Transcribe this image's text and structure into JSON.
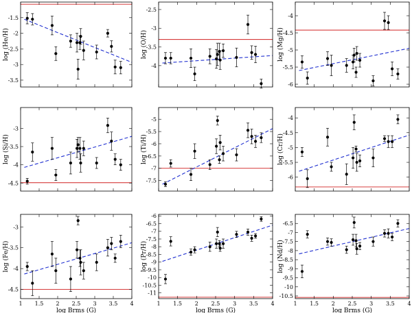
{
  "chart_data": [
    {
      "type": "scatter",
      "id": "he",
      "ylabel": "log (He/H)",
      "xlabel": "",
      "xlim": [
        1,
        4
      ],
      "ylim": [
        -3.72,
        -1.0
      ],
      "yticks": [
        -3.5,
        -3,
        -2.5,
        -2,
        -1.5
      ],
      "yticklabels": [
        "-3.5",
        "-3",
        "-2.5",
        "-2",
        "-1.5"
      ],
      "xticks": [
        1,
        1.5,
        2,
        2.5,
        3,
        3.5,
        4
      ],
      "xticklabels": [],
      "solar": -1.07,
      "fit": [
        [
          1.1,
          -1.55
        ],
        [
          4,
          -2.93
        ]
      ],
      "points": [
        [
          1.18,
          -1.52,
          0.18
        ],
        [
          1.32,
          -1.55,
          0.18
        ],
        [
          1.85,
          -1.75,
          0.3
        ],
        [
          1.95,
          -2.65,
          0.22
        ],
        [
          2.35,
          -2.25,
          0.2
        ],
        [
          2.52,
          -2.3,
          0.3
        ],
        [
          2.55,
          -3.15,
          0.32
        ],
        [
          2.6,
          -2.3,
          0.22
        ],
        [
          2.62,
          -2.1,
          0.25
        ],
        [
          2.7,
          -2.55,
          0.3
        ],
        [
          3.05,
          -2.6,
          0.22
        ],
        [
          3.35,
          -2.0,
          0.12
        ],
        [
          3.45,
          -2.42,
          0.18
        ],
        [
          3.55,
          -3.08,
          0.22
        ],
        [
          3.7,
          -3.1,
          0.2
        ]
      ]
    },
    {
      "type": "scatter",
      "id": "o",
      "ylabel": "log (O/H)",
      "xlabel": "",
      "xlim": [
        1,
        4
      ],
      "ylim": [
        -4.57,
        -2.3
      ],
      "yticks": [
        -4,
        -3.5,
        -3,
        -2.5
      ],
      "yticklabels": [
        "-4",
        "-3.5",
        "-3",
        "-2.5"
      ],
      "xticks": [
        1,
        1.5,
        2,
        2.5,
        3,
        3.5,
        4
      ],
      "xticklabels": [],
      "solar": -3.3,
      "fit": [
        [
          1.1,
          -3.93
        ],
        [
          4,
          -3.73
        ]
      ],
      "points": [
        [
          1.18,
          -3.8,
          0.15
        ],
        [
          1.32,
          -3.8,
          0.15
        ],
        [
          1.85,
          -3.8,
          0.25
        ],
        [
          1.95,
          -4.22,
          0.18
        ],
        [
          2.35,
          -3.75,
          0.2
        ],
        [
          2.52,
          -3.82,
          0.25
        ],
        [
          2.55,
          -3.7,
          0.3
        ],
        [
          2.6,
          -3.62,
          0.22
        ],
        [
          2.62,
          -3.85,
          0.25
        ],
        [
          2.7,
          -3.6,
          0.18
        ],
        [
          3.05,
          -3.78,
          0.25
        ],
        [
          3.35,
          -2.9,
          0.25
        ],
        [
          3.45,
          -3.65,
          0.18
        ],
        [
          3.55,
          -3.7,
          0.22
        ],
        [
          3.7,
          -4.48,
          0.12
        ]
      ]
    },
    {
      "type": "scatter",
      "id": "mg",
      "ylabel": "log (Mg/H)",
      "xlabel": "",
      "xlim": [
        1,
        4
      ],
      "ylim": [
        -6.08,
        -3.6
      ],
      "yticks": [
        -6,
        -5.5,
        -5,
        -4.5,
        -4
      ],
      "yticklabels": [
        "-6",
        "-5.5",
        "-5",
        "-4.5",
        "-4"
      ],
      "xticks": [
        1,
        1.5,
        2,
        2.5,
        3,
        3.5,
        4
      ],
      "xticklabels": [],
      "solar": -4.42,
      "fit": [
        [
          1.1,
          -5.6
        ],
        [
          4,
          -4.95
        ]
      ],
      "points": [
        [
          1.18,
          -5.35,
          0.18
        ],
        [
          1.32,
          -5.82,
          0.18
        ],
        [
          1.85,
          -5.25,
          0.2
        ],
        [
          1.95,
          -5.45,
          0.3
        ],
        [
          2.35,
          -5.45,
          0.2
        ],
        [
          2.52,
          -5.35,
          0.2
        ],
        [
          2.55,
          -5.15,
          0.2
        ],
        [
          2.6,
          -5.65,
          0.15
        ],
        [
          2.62,
          -5.1,
          0.2
        ],
        [
          2.7,
          -5.3,
          0.2
        ],
        [
          3.05,
          -5.9,
          0.15
        ],
        [
          3.35,
          -4.15,
          0.25
        ],
        [
          3.45,
          -4.2,
          0.2
        ],
        [
          3.55,
          -5.55,
          0.2
        ],
        [
          3.7,
          -5.7,
          0.15
        ]
      ]
    },
    {
      "type": "scatter",
      "id": "si",
      "ylabel": "log (Si/H)",
      "xlabel": "",
      "xlim": [
        1,
        4
      ],
      "ylim": [
        -4.72,
        -2.43
      ],
      "yticks": [
        -4.5,
        -4,
        -3.5,
        -3
      ],
      "yticklabels": [
        "-4.5",
        "-4",
        "-3.5",
        "-3"
      ],
      "xticks": [
        1,
        1.5,
        2,
        2.5,
        3,
        3.5,
        4
      ],
      "xticklabels": [],
      "solar": -4.49,
      "fit": [
        [
          1.1,
          -4.07
        ],
        [
          4,
          -3.22
        ]
      ],
      "points": [
        [
          1.18,
          -4.45,
          0.08
        ],
        [
          1.32,
          -3.65,
          0.25
        ],
        [
          1.85,
          -3.55,
          0.3
        ],
        [
          1.95,
          -4.28,
          0.15
        ],
        [
          2.35,
          -3.95,
          0.3
        ],
        [
          2.52,
          -3.55,
          0.25
        ],
        [
          2.55,
          -3.45,
          0.2
        ],
        [
          2.6,
          -3.55,
          0.3
        ],
        [
          2.62,
          -3.95,
          0.25
        ],
        [
          2.7,
          -3.55,
          0.2
        ],
        [
          3.05,
          -3.95,
          0.15
        ],
        [
          3.35,
          -2.92,
          0.2
        ],
        [
          3.45,
          -3.35,
          0.25
        ],
        [
          3.55,
          -3.85,
          0.15
        ],
        [
          3.7,
          -4.0,
          0.15
        ]
      ]
    },
    {
      "type": "scatter",
      "id": "ti",
      "ylabel": "log (Ti/H)",
      "xlabel": "",
      "xlim": [
        1,
        4
      ],
      "ylim": [
        -7.93,
        -4.52
      ],
      "yticks": [
        -7.5,
        -7,
        -6.5,
        -6,
        -5.5,
        -5
      ],
      "yticklabels": [
        "-7.5",
        "-7",
        "-6.5",
        "-6",
        "-5.5",
        "-5"
      ],
      "xticks": [
        1,
        1.5,
        2,
        2.5,
        3,
        3.5,
        4
      ],
      "xticklabels": [],
      "solar": -7.0,
      "fit": [
        [
          1.1,
          -7.65
        ],
        [
          4,
          -5.38
        ]
      ],
      "points": [
        [
          1.18,
          -7.65,
          0.1
        ],
        [
          1.32,
          -6.8,
          0.15
        ],
        [
          1.85,
          -7.25,
          0.25
        ],
        [
          1.95,
          -6.3,
          0.3
        ],
        [
          2.35,
          -6.85,
          0.2
        ],
        [
          2.52,
          -6.1,
          0.3
        ],
        [
          2.55,
          -5.05,
          0.18
        ],
        [
          2.6,
          -6.65,
          0.15
        ],
        [
          2.62,
          -5.95,
          0.3
        ],
        [
          2.7,
          -6.4,
          0.3
        ],
        [
          3.05,
          -6.45,
          0.25
        ],
        [
          3.35,
          -5.45,
          0.3
        ],
        [
          3.45,
          -5.7,
          0.3
        ],
        [
          3.55,
          -5.9,
          0.25
        ],
        [
          3.7,
          -5.75,
          0.2
        ]
      ]
    },
    {
      "type": "scatter",
      "id": "cr",
      "ylabel": "log (Cr/H)",
      "xlabel": "",
      "xlim": [
        1,
        4
      ],
      "ylim": [
        -6.47,
        -3.65
      ],
      "yticks": [
        -6,
        -5.5,
        -5,
        -4.5,
        -4
      ],
      "yticklabels": [
        "-6",
        "-5.5",
        "-5",
        "-4.5",
        "-4"
      ],
      "xticks": [
        1,
        1.5,
        2,
        2.5,
        3,
        3.5,
        4
      ],
      "xticklabels": [],
      "solar": -6.33,
      "fit": [
        [
          1.1,
          -5.8
        ],
        [
          4,
          -4.58
        ]
      ],
      "points": [
        [
          1.18,
          -5.15,
          0.15
        ],
        [
          1.32,
          -6.05,
          0.3
        ],
        [
          1.85,
          -4.65,
          0.3
        ],
        [
          1.95,
          -5.65,
          0.15
        ],
        [
          2.35,
          -5.9,
          0.35
        ],
        [
          2.52,
          -5.35,
          0.35
        ],
        [
          2.55,
          -4.15,
          0.25
        ],
        [
          2.6,
          -5.05,
          0.1
        ],
        [
          2.62,
          -5.5,
          0.3
        ],
        [
          2.7,
          -5.45,
          0.2
        ],
        [
          3.05,
          -5.35,
          0.3
        ],
        [
          3.35,
          -4.7,
          0.1
        ],
        [
          3.45,
          -4.8,
          0.2
        ],
        [
          3.55,
          -4.8,
          0.2
        ],
        [
          3.7,
          -4.05,
          0.15
        ]
      ]
    },
    {
      "type": "scatter",
      "id": "fe",
      "ylabel": "log (Fe/H)",
      "xlabel": "log Brms (G)",
      "xlim": [
        1,
        4
      ],
      "ylim": [
        -4.72,
        -2.7
      ],
      "yticks": [
        -4.5,
        -4,
        -3.5,
        -3
      ],
      "yticklabels": [
        "-4.5",
        "-4",
        "-3.5",
        "-3"
      ],
      "xticks": [
        1,
        1.5,
        2,
        2.5,
        3,
        3.5,
        4
      ],
      "xticklabels": [
        "1",
        "1.5",
        "2",
        "2.5",
        "3",
        "3.5",
        "4"
      ],
      "solar": -4.5,
      "fit": [
        [
          1.1,
          -4.13
        ],
        [
          4,
          -3.38
        ]
      ],
      "points": [
        [
          1.18,
          -3.95,
          0.1
        ],
        [
          1.32,
          -4.35,
          0.3
        ],
        [
          1.85,
          -3.65,
          0.3
        ],
        [
          1.95,
          -4.05,
          0.3
        ],
        [
          2.35,
          -4.25,
          0.3
        ],
        [
          2.52,
          -3.55,
          0.2
        ],
        [
          2.55,
          -2.85,
          0.1
        ],
        [
          2.6,
          -3.75,
          0.2
        ],
        [
          2.62,
          -3.85,
          0.3
        ],
        [
          2.7,
          -4.05,
          0.2
        ],
        [
          3.05,
          -3.85,
          0.2
        ],
        [
          3.35,
          -3.5,
          0.2
        ],
        [
          3.45,
          -3.4,
          0.15
        ],
        [
          3.55,
          -3.75,
          0.1
        ],
        [
          3.7,
          -3.35,
          0.15
        ]
      ]
    },
    {
      "type": "scatter",
      "id": "pr",
      "ylabel": "log (Pr/H)",
      "xlabel": "log Brms (G)",
      "xlim": [
        1,
        4
      ],
      "ylim": [
        -11.37,
        -5.9
      ],
      "yticks": [
        -11,
        -10.5,
        -10,
        -9.5,
        -9,
        -8.5,
        -8,
        -7.5,
        -7,
        -6.5,
        -6
      ],
      "yticklabels": [
        "-11",
        "-10.5",
        "-10",
        "-9.5",
        "-9",
        "-8.5",
        "-8",
        "-7.5",
        "-7",
        "-6.5",
        "-6"
      ],
      "xticks": [
        1,
        1.5,
        2,
        2.5,
        3,
        3.5,
        4
      ],
      "xticklabels": [
        "1",
        "1.5",
        "2",
        "2.5",
        "3",
        "3.5",
        "4"
      ],
      "solar": -11.28,
      "fit": [
        [
          1.1,
          -8.95
        ],
        [
          4,
          -6.6
        ]
      ],
      "points": [
        [
          1.18,
          -10.1,
          0.3
        ],
        [
          1.32,
          -7.65,
          0.3
        ],
        [
          1.85,
          -8.35,
          0.2
        ],
        [
          1.95,
          -8.2,
          0.2
        ],
        [
          2.35,
          -8.0,
          0.3
        ],
        [
          2.52,
          -7.8,
          0.3
        ],
        [
          2.55,
          -7.05,
          0.3
        ],
        [
          2.6,
          -7.8,
          0.2
        ],
        [
          2.62,
          -8.1,
          0.2
        ],
        [
          2.7,
          -7.8,
          0.3
        ],
        [
          3.05,
          -7.2,
          0.2
        ],
        [
          3.35,
          -7.05,
          0.2
        ],
        [
          3.45,
          -7.45,
          0.2
        ],
        [
          3.55,
          -7.3,
          0.15
        ],
        [
          3.7,
          -6.2,
          0.15
        ]
      ]
    },
    {
      "type": "scatter",
      "id": "nd",
      "ylabel": "log (Nd/H)",
      "xlabel": "log Brms (G)",
      "xlim": [
        1,
        4
      ],
      "ylim": [
        -10.65,
        -6.0
      ],
      "yticks": [
        -10.5,
        -10,
        -9.5,
        -9,
        -8.5,
        -8,
        -7.5,
        -7,
        -6.5
      ],
      "yticklabels": [
        "-10.5",
        "-10",
        "-9.5",
        "-9",
        "-8.5",
        "-8",
        "-7.5",
        "-7",
        "-6.5"
      ],
      "xticks": [
        1,
        1.5,
        2,
        2.5,
        3,
        3.5,
        4
      ],
      "xticklabels": [
        "1",
        "1.5",
        "2",
        "2.5",
        "3",
        "3.5",
        "4"
      ],
      "solar": -10.58,
      "fit": [
        [
          1.1,
          -8.18
        ],
        [
          4,
          -6.78
        ]
      ],
      "points": [
        [
          1.18,
          -9.15,
          0.35
        ],
        [
          1.32,
          -7.1,
          0.2
        ],
        [
          1.85,
          -7.5,
          0.2
        ],
        [
          1.95,
          -7.55,
          0.2
        ],
        [
          2.35,
          -7.95,
          0.2
        ],
        [
          2.52,
          -7.4,
          0.3
        ],
        [
          2.55,
          -6.45,
          0.3
        ],
        [
          2.6,
          -7.45,
          0.35
        ],
        [
          2.62,
          -7.9,
          0.3
        ],
        [
          2.7,
          -7.75,
          0.2
        ],
        [
          3.05,
          -7.5,
          0.25
        ],
        [
          3.35,
          -7.05,
          0.2
        ],
        [
          3.45,
          -7.05,
          0.25
        ],
        [
          3.55,
          -7.25,
          0.2
        ],
        [
          3.7,
          -6.5,
          0.2
        ]
      ]
    }
  ]
}
